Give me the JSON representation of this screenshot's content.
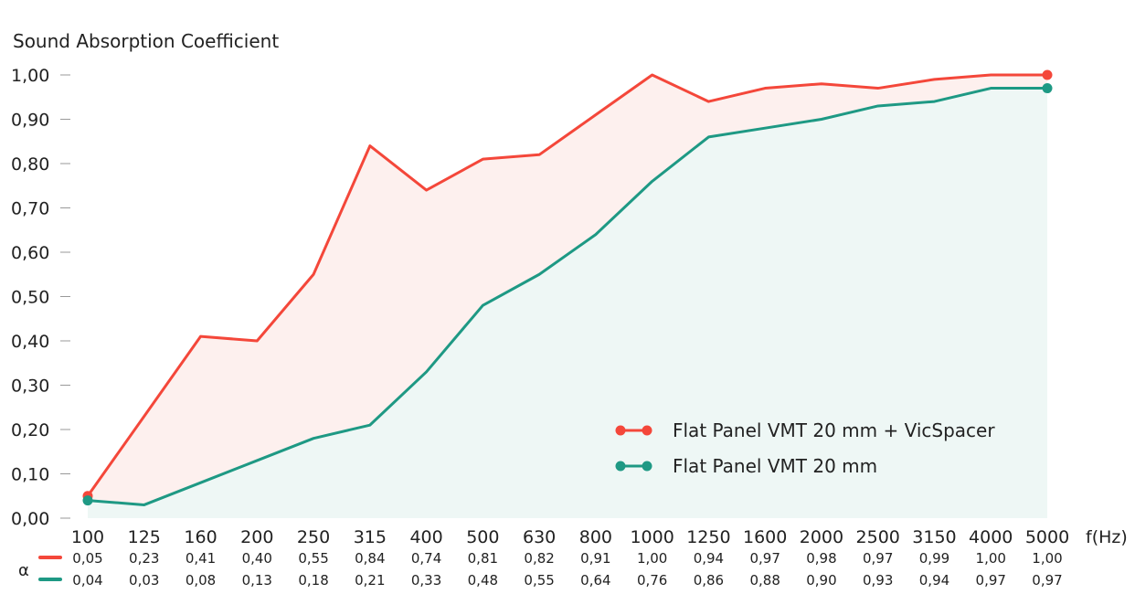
{
  "chart_data": {
    "type": "area",
    "title": "Sound Absorption Coefficient",
    "xlabel": "f(Hz)",
    "ylabel": "α",
    "ylim": [
      0,
      1
    ],
    "yticks": [
      "0,00",
      "0,10",
      "0,20",
      "0,30",
      "0,40",
      "0,50",
      "0,60",
      "0,70",
      "0,80",
      "0,90",
      "1,00"
    ],
    "categories": [
      "100",
      "125",
      "160",
      "200",
      "250",
      "315",
      "400",
      "500",
      "630",
      "800",
      "1000",
      "1250",
      "1600",
      "2000",
      "2500",
      "3150",
      "4000",
      "5000"
    ],
    "legend_position": "bottom-right",
    "series": [
      {
        "name": "Flat Panel VMT 20 mm + VicSpacer",
        "color": "#f4473a",
        "fill": "#fdf0ee",
        "values": [
          0.05,
          0.23,
          0.41,
          0.4,
          0.55,
          0.84,
          0.74,
          0.81,
          0.82,
          0.91,
          1.0,
          0.94,
          0.97,
          0.98,
          0.97,
          0.99,
          1.0,
          1.0
        ],
        "labels": [
          "0,05",
          "0,23",
          "0,41",
          "0,40",
          "0,55",
          "0,84",
          "0,74",
          "0,81",
          "0,82",
          "0,91",
          "1,00",
          "0,94",
          "0,97",
          "0,98",
          "0,97",
          "0,99",
          "1,00",
          "1,00"
        ]
      },
      {
        "name": "Flat Panel VMT 20 mm",
        "color": "#1e9984",
        "fill": "#eef7f5",
        "values": [
          0.04,
          0.03,
          0.08,
          0.13,
          0.18,
          0.21,
          0.33,
          0.48,
          0.55,
          0.64,
          0.76,
          0.86,
          0.88,
          0.9,
          0.93,
          0.94,
          0.97,
          0.97
        ],
        "labels": [
          "0,04",
          "0,03",
          "0,08",
          "0,13",
          "0,18",
          "0,21",
          "0,33",
          "0,48",
          "0,55",
          "0,64",
          "0,76",
          "0,86",
          "0,88",
          "0,90",
          "0,93",
          "0,94",
          "0,97",
          "0,97"
        ]
      }
    ]
  }
}
